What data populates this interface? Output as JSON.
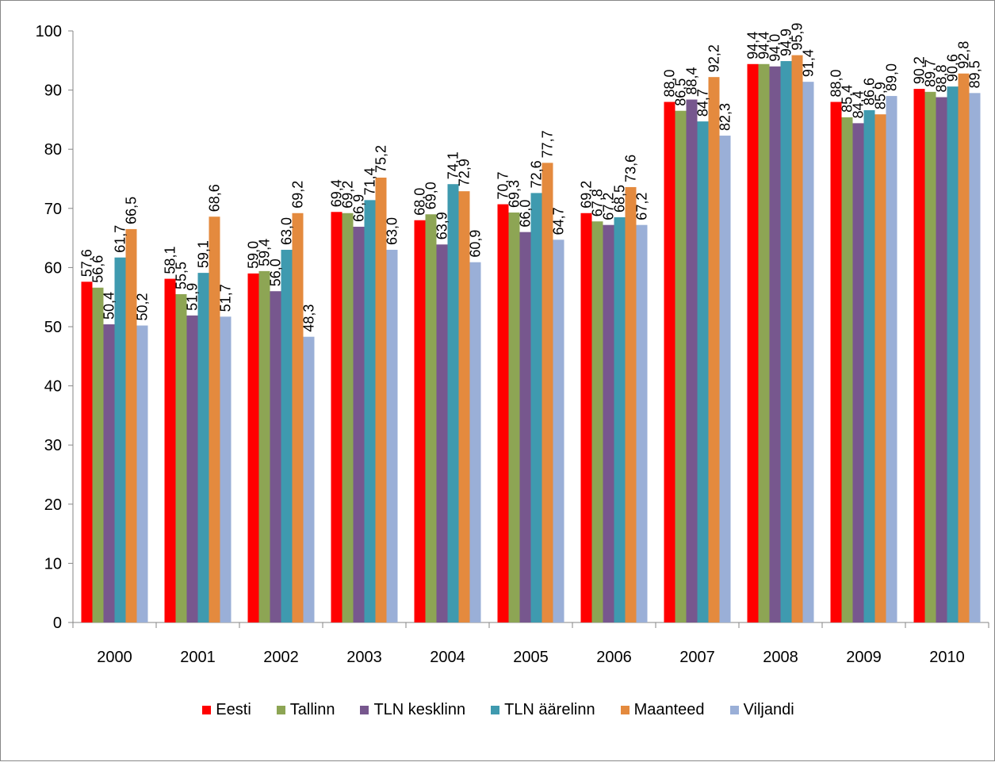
{
  "chart_data": {
    "type": "bar",
    "title": "",
    "xlabel": "",
    "ylabel": "",
    "ylim": [
      0,
      100
    ],
    "yticks": [
      0,
      10,
      20,
      30,
      40,
      50,
      60,
      70,
      80,
      90,
      100
    ],
    "grid": false,
    "legend_position": "bottom",
    "categories": [
      "2000",
      "2001",
      "2002",
      "2003",
      "2004",
      "2005",
      "2006",
      "2007",
      "2008",
      "2009",
      "2010"
    ],
    "series": [
      {
        "name": "Eesti",
        "color": "#FF0000",
        "values": [
          57.6,
          58.1,
          59.0,
          69.4,
          68.0,
          70.7,
          69.2,
          88.0,
          94.4,
          88.0,
          90.2
        ],
        "labels": [
          "57,6",
          "58,1",
          "59,0",
          "69,4",
          "68,0",
          "70,7",
          "69,2",
          "88,0",
          "94,4",
          "88,0",
          "90,2"
        ]
      },
      {
        "name": "Tallinn",
        "color": "#8DA554",
        "values": [
          56.6,
          55.5,
          59.4,
          69.2,
          69.0,
          69.3,
          67.8,
          86.5,
          94.4,
          85.4,
          89.7
        ],
        "labels": [
          "56,6",
          "55,5",
          "59,4",
          "69,2",
          "69,0",
          "69,3",
          "67,8",
          "86,5",
          "94,4",
          "85,4",
          "89,7"
        ]
      },
      {
        "name": "TLN kesklinn",
        "color": "#77578E",
        "values": [
          50.4,
          51.9,
          56.0,
          66.9,
          63.9,
          66.0,
          67.2,
          88.4,
          94.0,
          84.4,
          88.8
        ],
        "labels": [
          "50,4",
          "51,9",
          "56,0",
          "66,9",
          "63,9",
          "66,0",
          "67,2",
          "88,4",
          "94,0",
          "84,4",
          "88,8"
        ]
      },
      {
        "name": "TLN äärelinn",
        "color": "#3F9AAF",
        "values": [
          61.7,
          59.1,
          63.0,
          71.4,
          74.1,
          72.6,
          68.5,
          84.7,
          94.9,
          86.6,
          90.6
        ],
        "labels": [
          "61,7",
          "59,1",
          "63,0",
          "71,4",
          "74,1",
          "72,6",
          "68,5",
          "84,7",
          "94,9",
          "86,6",
          "90,6"
        ]
      },
      {
        "name": "Maanteed",
        "color": "#E48A3E",
        "values": [
          66.5,
          68.6,
          69.2,
          75.2,
          72.9,
          77.7,
          73.6,
          92.2,
          95.9,
          85.9,
          92.8
        ],
        "labels": [
          "66,5",
          "68,6",
          "69,2",
          "75,2",
          "72,9",
          "77,7",
          "73,6",
          "92,2",
          "95,9",
          "85,9",
          "92,8"
        ]
      },
      {
        "name": "Viljandi",
        "color": "#9AAFD7",
        "values": [
          50.2,
          51.7,
          48.3,
          63.0,
          60.9,
          64.7,
          67.2,
          82.3,
          91.4,
          89.0,
          89.5
        ],
        "labels": [
          "50,2",
          "51,7",
          "48,3",
          "63,0",
          "60,9",
          "64,7",
          "67,2",
          "82,3",
          "91,4",
          "89,0",
          "89,5"
        ]
      }
    ]
  }
}
